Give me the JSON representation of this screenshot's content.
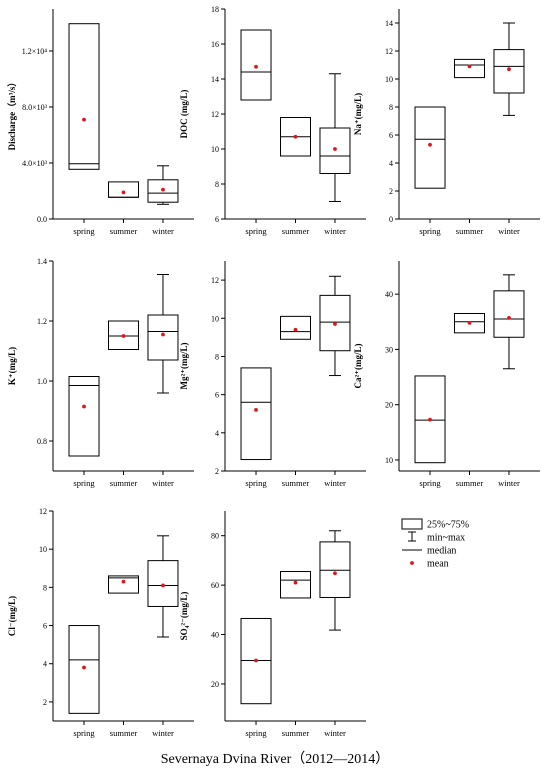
{
  "caption": "Severnaya Dvina River（2012—2014）",
  "legend": {
    "items": [
      {
        "kind": "box",
        "label": "25%~75%"
      },
      {
        "kind": "whisker",
        "label": "min~max"
      },
      {
        "kind": "median",
        "label": "median"
      },
      {
        "kind": "mean",
        "label": "mean"
      }
    ]
  },
  "colors": {
    "mean": "#e0151b",
    "line": "#000000"
  },
  "chart_data": [
    {
      "type": "box",
      "ylabel": "Discharge（m³/s）",
      "ylim": [
        0,
        15000
      ],
      "yticks": [
        0,
        4000,
        8000,
        12000
      ],
      "ytick_labels": [
        "0.0",
        "4.0×10³",
        "8.0×10³",
        "1.2×10⁴"
      ],
      "categories": [
        "spring",
        "summer",
        "winter"
      ],
      "boxes": [
        {
          "q1": 3550,
          "median": 3950,
          "q3": 13950,
          "min": 3550,
          "max": 13950,
          "mean": 7100
        },
        {
          "q1": 1550,
          "median": 1550,
          "q3": 2650,
          "min": 1550,
          "max": 2650,
          "mean": 1900
        },
        {
          "q1": 1200,
          "median": 1850,
          "q3": 2800,
          "min": 1050,
          "max": 3800,
          "mean": 2100
        }
      ]
    },
    {
      "type": "box",
      "ylabel": "DOC (mg/L)",
      "ylim": [
        6,
        18
      ],
      "yticks": [
        6,
        8,
        10,
        12,
        14,
        16,
        18
      ],
      "ytick_labels": [
        "6",
        "8",
        "10",
        "12",
        "14",
        "16",
        "18"
      ],
      "categories": [
        "spring",
        "summer",
        "winter"
      ],
      "boxes": [
        {
          "q1": 12.8,
          "median": 14.4,
          "q3": 16.8,
          "min": 12.8,
          "max": 16.8,
          "mean": 14.7
        },
        {
          "q1": 9.6,
          "median": 10.7,
          "q3": 11.8,
          "min": 9.6,
          "max": 11.8,
          "mean": 10.7
        },
        {
          "q1": 8.6,
          "median": 9.6,
          "q3": 11.2,
          "min": 7.0,
          "max": 14.3,
          "mean": 10.0
        }
      ]
    },
    {
      "type": "box",
      "ylabel": "Na⁺(mg/L)",
      "ylim": [
        0,
        15
      ],
      "yticks": [
        0,
        2,
        4,
        6,
        8,
        10,
        12,
        14
      ],
      "ytick_labels": [
        "0",
        "2",
        "4",
        "6",
        "8",
        "10",
        "12",
        "14"
      ],
      "categories": [
        "spring",
        "summer",
        "winter"
      ],
      "boxes": [
        {
          "q1": 2.2,
          "median": 5.7,
          "q3": 8.0,
          "min": 2.2,
          "max": 8.0,
          "mean": 5.3
        },
        {
          "q1": 10.1,
          "median": 11.0,
          "q3": 11.4,
          "min": 10.1,
          "max": 11.4,
          "mean": 10.9
        },
        {
          "q1": 9.0,
          "median": 10.9,
          "q3": 12.1,
          "min": 7.4,
          "max": 14.0,
          "mean": 10.7
        }
      ]
    },
    {
      "type": "box",
      "ylabel": "K⁺(mg/L)",
      "ylim": [
        0.7,
        1.4
      ],
      "yticks": [
        0.8,
        1.0,
        1.2,
        1.4
      ],
      "ytick_labels": [
        "0.8",
        "1.0",
        "1.2",
        "1.4"
      ],
      "categories": [
        "spring",
        "summer",
        "winter"
      ],
      "boxes": [
        {
          "q1": 0.75,
          "median": 0.985,
          "q3": 1.015,
          "min": 0.75,
          "max": 1.015,
          "mean": 0.915
        },
        {
          "q1": 1.105,
          "median": 1.15,
          "q3": 1.2,
          "min": 1.105,
          "max": 1.2,
          "mean": 1.15
        },
        {
          "q1": 1.07,
          "median": 1.165,
          "q3": 1.22,
          "min": 0.96,
          "max": 1.355,
          "mean": 1.155
        }
      ]
    },
    {
      "type": "box",
      "ylabel": "Mg²⁺(mg/L)",
      "ylim": [
        2,
        13
      ],
      "yticks": [
        2,
        4,
        6,
        8,
        10,
        12
      ],
      "ytick_labels": [
        "2",
        "4",
        "6",
        "8",
        "10",
        "12"
      ],
      "categories": [
        "spring",
        "summer",
        "winter"
      ],
      "boxes": [
        {
          "q1": 2.6,
          "median": 5.6,
          "q3": 7.4,
          "min": 2.6,
          "max": 7.4,
          "mean": 5.2
        },
        {
          "q1": 8.9,
          "median": 9.3,
          "q3": 10.1,
          "min": 8.9,
          "max": 10.1,
          "mean": 9.4
        },
        {
          "q1": 8.3,
          "median": 9.8,
          "q3": 11.2,
          "min": 7.0,
          "max": 12.2,
          "mean": 9.7
        }
      ]
    },
    {
      "type": "box",
      "ylabel": "Ca²⁺(mg/L)",
      "ylim": [
        8,
        46
      ],
      "yticks": [
        10,
        20,
        30,
        40
      ],
      "ytick_labels": [
        "10",
        "20",
        "30",
        "40"
      ],
      "categories": [
        "spring",
        "summer",
        "winter"
      ],
      "boxes": [
        {
          "q1": 9.5,
          "median": 17.2,
          "q3": 25.2,
          "min": 9.5,
          "max": 25.2,
          "mean": 17.3
        },
        {
          "q1": 33.0,
          "median": 35.0,
          "q3": 36.5,
          "min": 33.0,
          "max": 36.5,
          "mean": 34.8
        },
        {
          "q1": 32.2,
          "median": 35.5,
          "q3": 40.6,
          "min": 26.5,
          "max": 43.5,
          "mean": 35.7
        }
      ]
    },
    {
      "type": "box",
      "ylabel": "Cl⁻(mg/L)",
      "ylim": [
        1,
        12
      ],
      "yticks": [
        2,
        4,
        6,
        8,
        10,
        12
      ],
      "ytick_labels": [
        "2",
        "4",
        "6",
        "8",
        "10",
        "12"
      ],
      "categories": [
        "spring",
        "summer",
        "winter"
      ],
      "boxes": [
        {
          "q1": 1.4,
          "median": 4.2,
          "q3": 6.0,
          "min": 1.4,
          "max": 6.0,
          "mean": 3.8
        },
        {
          "q1": 7.7,
          "median": 8.5,
          "q3": 8.6,
          "min": 7.7,
          "max": 8.6,
          "mean": 8.3
        },
        {
          "q1": 7.0,
          "median": 8.1,
          "q3": 9.4,
          "min": 5.4,
          "max": 10.7,
          "mean": 8.1
        }
      ]
    },
    {
      "type": "box",
      "ylabel": "SO₄²⁻(mg/L)",
      "ylim": [
        5,
        90
      ],
      "yticks": [
        20,
        40,
        60,
        80
      ],
      "ytick_labels": [
        "20",
        "40",
        "60",
        "80"
      ],
      "categories": [
        "spring",
        "summer",
        "winter"
      ],
      "boxes": [
        {
          "q1": 12.0,
          "median": 29.5,
          "q3": 46.5,
          "min": 12.0,
          "max": 46.5,
          "mean": 29.5
        },
        {
          "q1": 54.8,
          "median": 62.0,
          "q3": 65.5,
          "min": 54.8,
          "max": 65.5,
          "mean": 61.0
        },
        {
          "q1": 55.0,
          "median": 66.0,
          "q3": 77.5,
          "min": 41.8,
          "max": 82.0,
          "mean": 64.8
        }
      ]
    }
  ]
}
